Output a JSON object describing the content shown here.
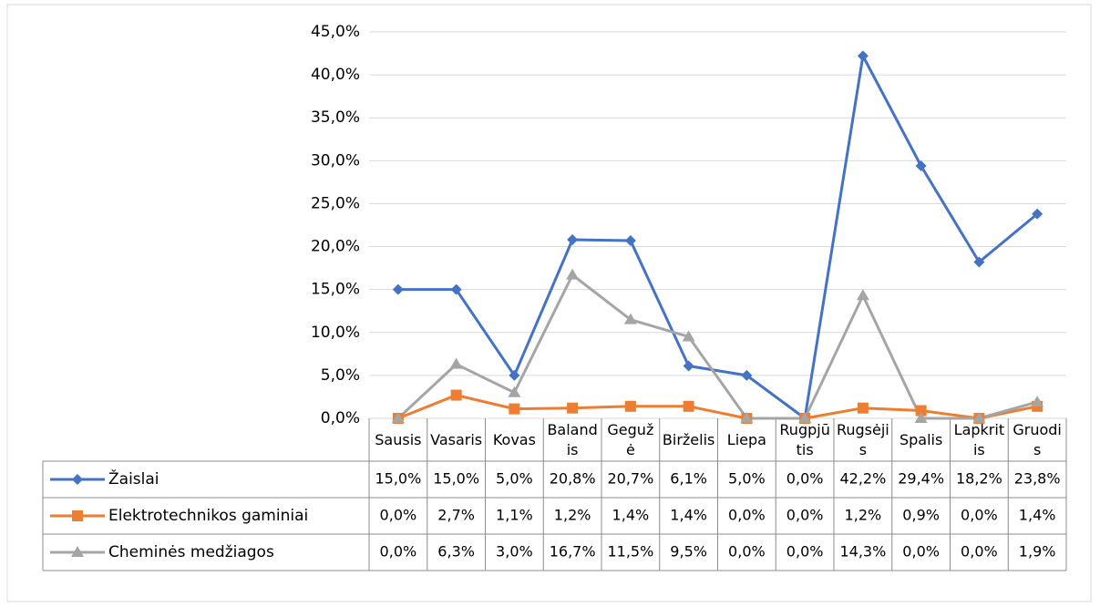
{
  "chart_data": {
    "type": "line",
    "categories": [
      "Sausis",
      "Vasaris",
      "Kovas",
      "Balandis",
      "Gegužė",
      "Birželis",
      "Liepa",
      "Rugpjūtis",
      "Rugsėjis",
      "Spalis",
      "Lapkritis",
      "Gruodis"
    ],
    "series": [
      {
        "name": "Žaislai",
        "color": "#4472c4",
        "marker": "diamond",
        "values": [
          15.0,
          15.0,
          5.0,
          20.8,
          20.7,
          6.1,
          5.0,
          0.0,
          42.2,
          29.4,
          18.2,
          23.8
        ],
        "value_labels": [
          "15,0%",
          "15,0%",
          "5,0%",
          "20,8%",
          "20,7%",
          "6,1%",
          "5,0%",
          "0,0%",
          "42,2%",
          "29,4%",
          "18,2%",
          "23,8%"
        ]
      },
      {
        "name": "Elektrotechnikos gaminiai",
        "color": "#ed7d31",
        "marker": "square",
        "values": [
          0.0,
          2.7,
          1.1,
          1.2,
          1.4,
          1.4,
          0.0,
          0.0,
          1.2,
          0.9,
          0.0,
          1.4
        ],
        "value_labels": [
          "0,0%",
          "2,7%",
          "1,1%",
          "1,2%",
          "1,4%",
          "1,4%",
          "0,0%",
          "0,0%",
          "1,2%",
          "0,9%",
          "0,0%",
          "1,4%"
        ]
      },
      {
        "name": "Cheminės medžiagos",
        "color": "#a5a5a5",
        "marker": "triangle",
        "values": [
          0.0,
          6.3,
          3.0,
          16.7,
          11.5,
          9.5,
          0.0,
          0.0,
          14.3,
          0.0,
          0.0,
          1.9
        ],
        "value_labels": [
          "0,0%",
          "6,3%",
          "3,0%",
          "16,7%",
          "11,5%",
          "9,5%",
          "0,0%",
          "0,0%",
          "14,3%",
          "0,0%",
          "0,0%",
          "1,9%"
        ]
      }
    ],
    "ylim": [
      0,
      45
    ],
    "yticks": [
      {
        "value": 0,
        "label": "0,0%"
      },
      {
        "value": 5,
        "label": "5,0%"
      },
      {
        "value": 10,
        "label": "10,0%"
      },
      {
        "value": 15,
        "label": "15,0%"
      },
      {
        "value": 20,
        "label": "20,0%"
      },
      {
        "value": 25,
        "label": "25,0%"
      },
      {
        "value": 30,
        "label": "30,0%"
      },
      {
        "value": 35,
        "label": "35,0%"
      },
      {
        "value": 40,
        "label": "40,0%"
      },
      {
        "value": 45,
        "label": "45,0%"
      }
    ],
    "grid": true,
    "legend": "table"
  }
}
